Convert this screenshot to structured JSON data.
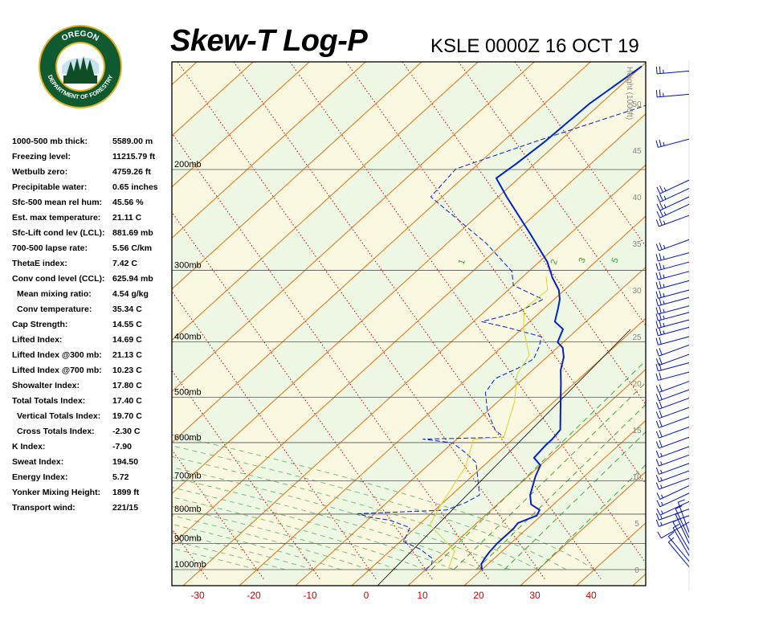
{
  "header": {
    "title": "Skew-T Log-P",
    "station": "KSLE 0000Z 16 OCT 19"
  },
  "logo": {
    "top_text": "OREGON",
    "bottom_text": "DEPARTMENT OF FORESTRY",
    "colors": {
      "ring": "#0f5a2e",
      "gold": "#e8b01e",
      "tree": "#0f4d24"
    }
  },
  "indices": [
    {
      "label": "1000-500 mb thick:",
      "value": "5589.00 m"
    },
    {
      "label": "Freezing level:",
      "value": "11215.79 ft"
    },
    {
      "label": "Wetbulb zero:",
      "value": "4759.26 ft"
    },
    {
      "label": "Precipitable water:",
      "value": "0.65 inches"
    },
    {
      "label": "Sfc-500 mean rel hum:",
      "value": "45.56 %"
    },
    {
      "label": "Est. max temperature:",
      "value": "21.11 C"
    },
    {
      "label": "Sfc-Lift cond lev (LCL):",
      "value": "881.69 mb"
    },
    {
      "label": "700-500 lapse rate:",
      "value": "5.56 C/km"
    },
    {
      "label": "ThetaE index:",
      "value": "7.42 C"
    },
    {
      "label": "Conv cond level (CCL):",
      "value": "625.94 mb"
    },
    {
      "label": "Mean mixing ratio:",
      "value": "4.54 g/kg",
      "sub": true
    },
    {
      "label": "Conv temperature:",
      "value": "35.34 C",
      "sub": true
    },
    {
      "label": "Cap Strength:",
      "value": "14.55 C"
    },
    {
      "label": "Lifted Index:",
      "value": "14.69 C"
    },
    {
      "label": "Lifted Index @300 mb:",
      "value": "21.13 C"
    },
    {
      "label": "Lifted Index @700 mb:",
      "value": "10.23 C"
    },
    {
      "label": "Showalter Index:",
      "value": "17.80 C"
    },
    {
      "label": "Total Totals Index:",
      "value": "17.40 C"
    },
    {
      "label": "Vertical Totals Index:",
      "value": "19.70 C",
      "sub": true
    },
    {
      "label": "Cross Totals Index:",
      "value": "-2.30 C",
      "sub": true
    },
    {
      "label": "K Index:",
      "value": "-7.90"
    },
    {
      "label": "Sweat Index:",
      "value": "194.50"
    },
    {
      "label": "Energy Index:",
      "value": "5.72"
    },
    {
      "label": "Yonker Mixing Height:",
      "value": "1899 ft"
    },
    {
      "label": "Transport wind:",
      "value": "221/15"
    }
  ],
  "chart_data": {
    "type": "line",
    "diagram": "skew-t log-p",
    "pressure_levels_mb": [
      1000,
      900,
      800,
      700,
      600,
      500,
      400,
      300,
      200
    ],
    "pressure_labels": [
      "1000mb",
      "900mb",
      "800mb",
      "700mb",
      "600mb",
      "500mb",
      "400mb",
      "300mb",
      "200mb"
    ],
    "temperature_ticks_c": [
      -30,
      -20,
      -10,
      0,
      10,
      20,
      30,
      40
    ],
    "temperature_tick_labels": [
      "-30",
      "-20",
      "-10",
      "0",
      "10",
      "20",
      "30",
      "40"
    ],
    "height_axis_label": "Height (1000ft)",
    "height_ticks_kft": [
      0,
      5,
      10,
      15,
      20,
      25,
      30,
      35,
      40,
      45,
      50
    ],
    "height_tick_labels": [
      "0",
      "5",
      "10",
      "15",
      "20",
      "25",
      "30",
      "35",
      "40",
      "45",
      "50"
    ],
    "mixing_ratio_labels": [
      "1",
      "2",
      "3",
      "5"
    ],
    "series": [
      {
        "kind": "temperature",
        "color": "#0022cc",
        "points": [
          {
            "h": 0,
            "t": 20.0
          },
          {
            "h": 0.6,
            "t": 18.8
          },
          {
            "h": 1.2,
            "t": 18.3
          },
          {
            "h": 1.9,
            "t": 17.9
          },
          {
            "h": 2.8,
            "t": 17.6
          },
          {
            "h": 4.4,
            "t": 17.6
          },
          {
            "h": 5.0,
            "t": 17.3
          },
          {
            "h": 5.8,
            "t": 19.2
          },
          {
            "h": 6.4,
            "t": 18.6
          },
          {
            "h": 7.0,
            "t": 16.0
          },
          {
            "h": 8.0,
            "t": 14.0
          },
          {
            "h": 10.0,
            "t": 11.3
          },
          {
            "h": 11.2,
            "t": 10.0
          },
          {
            "h": 12.0,
            "t": 7.4
          },
          {
            "h": 13.4,
            "t": 7.0
          },
          {
            "h": 14.0,
            "t": 7.0
          },
          {
            "h": 15.0,
            "t": 6.6
          },
          {
            "h": 17.0,
            "t": 3.0
          },
          {
            "h": 19.0,
            "t": -0.6
          },
          {
            "h": 20.0,
            "t": -2.4
          },
          {
            "h": 21.4,
            "t": -5.0
          },
          {
            "h": 22.8,
            "t": -7.0
          },
          {
            "h": 23.8,
            "t": -9.0
          },
          {
            "h": 24.4,
            "t": -11.0
          },
          {
            "h": 25.8,
            "t": -12.6
          },
          {
            "h": 26.6,
            "t": -15.5
          },
          {
            "h": 28.0,
            "t": -17.5
          },
          {
            "h": 29.0,
            "t": -19.0
          },
          {
            "h": 30.0,
            "t": -21.0
          },
          {
            "h": 31.3,
            "t": -24.5
          },
          {
            "h": 33.0,
            "t": -28.5
          },
          {
            "h": 36.0,
            "t": -37.0
          },
          {
            "h": 40.0,
            "t": -48.5
          },
          {
            "h": 42.0,
            "t": -54.0
          },
          {
            "h": 43.5,
            "t": -53.3
          },
          {
            "h": 46.0,
            "t": -52.5
          },
          {
            "h": 50.0,
            "t": -52.0
          },
          {
            "h": 54.0,
            "t": -50.0
          }
        ]
      },
      {
        "kind": "dewpoint",
        "color": "#0022cc",
        "dash": "6 3",
        "points": [
          {
            "h": 0,
            "t": 10.0
          },
          {
            "h": 0.6,
            "t": 10.0
          },
          {
            "h": 1.2,
            "t": 9.0
          },
          {
            "h": 2.2,
            "t": 5.0
          },
          {
            "h": 3.0,
            "t": 0.6
          },
          {
            "h": 4.5,
            "t": -1.0
          },
          {
            "h": 5.3,
            "t": -6.0
          },
          {
            "h": 5.6,
            "t": -10.0
          },
          {
            "h": 6.0,
            "t": -13.0
          },
          {
            "h": 6.4,
            "t": 2.0
          },
          {
            "h": 7.2,
            "t": 4.0
          },
          {
            "h": 8.0,
            "t": 5.0
          },
          {
            "h": 9.0,
            "t": 3.0
          },
          {
            "h": 10.5,
            "t": 0.0
          },
          {
            "h": 11.5,
            "t": -2.0
          },
          {
            "h": 12.6,
            "t": -6.0
          },
          {
            "h": 13.6,
            "t": -10.0
          },
          {
            "h": 14.0,
            "t": -16.0
          },
          {
            "h": 14.2,
            "t": -2.0
          },
          {
            "h": 15.0,
            "t": -5.0
          },
          {
            "h": 17.0,
            "t": -10.0
          },
          {
            "h": 19.0,
            "t": -14.0
          },
          {
            "h": 20.5,
            "t": -15.0
          },
          {
            "h": 21.6,
            "t": -13.0
          },
          {
            "h": 22.6,
            "t": -12.0
          },
          {
            "h": 24.0,
            "t": -13.5
          },
          {
            "h": 25.0,
            "t": -15.0
          },
          {
            "h": 26.0,
            "t": -23.0
          },
          {
            "h": 26.6,
            "t": -28.5
          },
          {
            "h": 27.6,
            "t": -24.0
          },
          {
            "h": 29.0,
            "t": -22.0
          },
          {
            "h": 30.5,
            "t": -30.0
          },
          {
            "h": 32.0,
            "t": -33.0
          },
          {
            "h": 35.0,
            "t": -43.0
          },
          {
            "h": 40.0,
            "t": -62.0
          },
          {
            "h": 43.0,
            "t": -63.0
          },
          {
            "h": 46.0,
            "t": -54.0
          },
          {
            "h": 50.0,
            "t": -41.0
          },
          {
            "h": 54.0,
            "t": -34.0
          }
        ]
      },
      {
        "kind": "wetbulb",
        "color": "#d8d828",
        "points": [
          {
            "h": 0,
            "t": 14.0
          },
          {
            "h": 2.0,
            "t": 11.5
          },
          {
            "h": 4.8,
            "t": 2.0
          },
          {
            "h": 7.0,
            "t": 0.0
          },
          {
            "h": 11.0,
            "t": -3.0
          },
          {
            "h": 14.0,
            "t": -7.0
          },
          {
            "h": 14.2,
            "t": -2.0
          },
          {
            "h": 18.0,
            "t": -7.0
          },
          {
            "h": 21.0,
            "t": -12.0
          },
          {
            "h": 23.0,
            "t": -13.5
          },
          {
            "h": 26.0,
            "t": -20.0
          },
          {
            "h": 28.0,
            "t": -23.5
          },
          {
            "h": 30.0,
            "t": -23.0
          },
          {
            "h": 31.5,
            "t": -26.0
          }
        ]
      }
    ],
    "wind_barbs": [
      {
        "h": 0.3,
        "dir": 320,
        "kt": 10
      },
      {
        "h": 0.9,
        "dir": 320,
        "kt": 10
      },
      {
        "h": 1.5,
        "dir": 330,
        "kt": 10
      },
      {
        "h": 2.1,
        "dir": 330,
        "kt": 10
      },
      {
        "h": 2.8,
        "dir": 335,
        "kt": 10
      },
      {
        "h": 3.4,
        "dir": 335,
        "kt": 10
      },
      {
        "h": 4.0,
        "dir": 340,
        "kt": 10
      },
      {
        "h": 5.1,
        "dir": 240,
        "kt": 10
      },
      {
        "h": 5.8,
        "dir": 250,
        "kt": 15
      },
      {
        "h": 6.5,
        "dir": 250,
        "kt": 15
      },
      {
        "h": 7.3,
        "dir": 245,
        "kt": 15
      },
      {
        "h": 8.2,
        "dir": 245,
        "kt": 15
      },
      {
        "h": 9.0,
        "dir": 245,
        "kt": 15
      },
      {
        "h": 9.8,
        "dir": 250,
        "kt": 15
      },
      {
        "h": 10.6,
        "dir": 250,
        "kt": 15
      },
      {
        "h": 11.4,
        "dir": 250,
        "kt": 15
      },
      {
        "h": 12.3,
        "dir": 250,
        "kt": 15
      },
      {
        "h": 13.2,
        "dir": 250,
        "kt": 15
      },
      {
        "h": 14.2,
        "dir": 250,
        "kt": 20
      },
      {
        "h": 15.3,
        "dir": 250,
        "kt": 20
      },
      {
        "h": 16.4,
        "dir": 250,
        "kt": 20
      },
      {
        "h": 17.4,
        "dir": 250,
        "kt": 20
      },
      {
        "h": 18.4,
        "dir": 250,
        "kt": 20
      },
      {
        "h": 19.3,
        "dir": 250,
        "kt": 20
      },
      {
        "h": 20.2,
        "dir": 250,
        "kt": 20
      },
      {
        "h": 21.2,
        "dir": 255,
        "kt": 20
      },
      {
        "h": 22.2,
        "dir": 255,
        "kt": 20
      },
      {
        "h": 23.1,
        "dir": 250,
        "kt": 20
      },
      {
        "h": 24.1,
        "dir": 250,
        "kt": 20
      },
      {
        "h": 25.0,
        "dir": 255,
        "kt": 20
      },
      {
        "h": 26.0,
        "dir": 255,
        "kt": 25
      },
      {
        "h": 26.8,
        "dir": 255,
        "kt": 25
      },
      {
        "h": 27.6,
        "dir": 255,
        "kt": 25
      },
      {
        "h": 28.3,
        "dir": 255,
        "kt": 25
      },
      {
        "h": 29.2,
        "dir": 255,
        "kt": 25
      },
      {
        "h": 30.0,
        "dir": 255,
        "kt": 25
      },
      {
        "h": 31.0,
        "dir": 255,
        "kt": 25
      },
      {
        "h": 32.0,
        "dir": 255,
        "kt": 25
      },
      {
        "h": 33.0,
        "dir": 255,
        "kt": 25
      },
      {
        "h": 34.0,
        "dir": 255,
        "kt": 25
      },
      {
        "h": 35.4,
        "dir": 250,
        "kt": 25
      },
      {
        "h": 38.0,
        "dir": 250,
        "kt": 25
      },
      {
        "h": 39.2,
        "dir": 245,
        "kt": 25
      },
      {
        "h": 40.0,
        "dir": 245,
        "kt": 25
      },
      {
        "h": 40.9,
        "dir": 245,
        "kt": 25
      },
      {
        "h": 41.8,
        "dir": 245,
        "kt": 25
      },
      {
        "h": 46.2,
        "dir": 255,
        "kt": 25
      },
      {
        "h": 51.0,
        "dir": 265,
        "kt": 25
      },
      {
        "h": 53.5,
        "dir": 265,
        "kt": 25
      }
    ],
    "colors": {
      "isotherm": "#e07a1e",
      "dry_adiabat": "#cc0000",
      "moist_adiabat": "#4aa84a",
      "mixing_ratio": "#2ca02c",
      "temp_tick_labels": "#cc0000",
      "plot_border": "#000000"
    }
  }
}
